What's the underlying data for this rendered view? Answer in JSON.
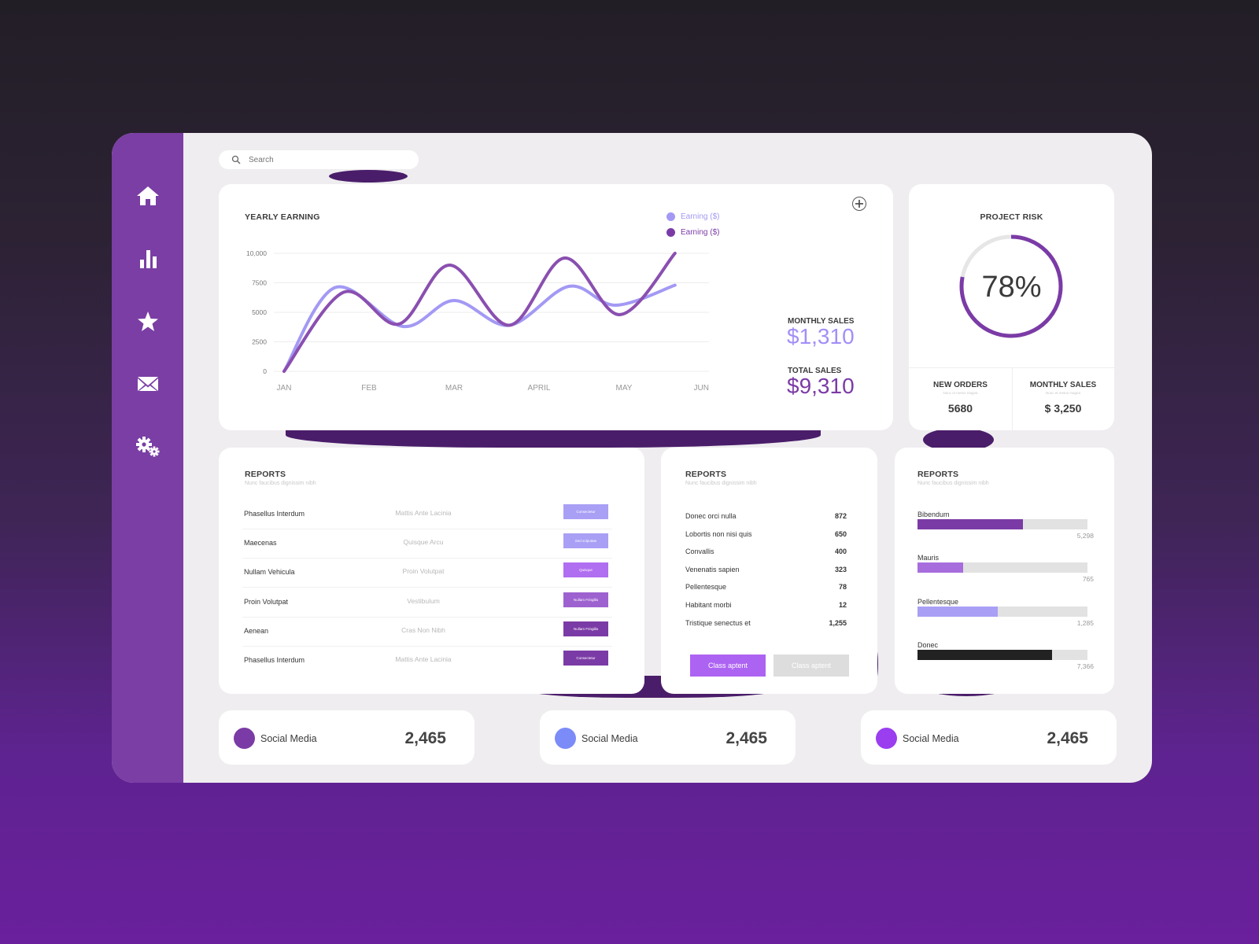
{
  "colors": {
    "brand": "#7a3ea4",
    "light_purple": "#a08cf8",
    "mid_purple": "#a86ddd",
    "dark_purple": "#7b3ba6",
    "grey_button": "#dddddd"
  },
  "sidebar": {
    "items": [
      {
        "icon": "home-icon"
      },
      {
        "icon": "bar-chart-icon"
      },
      {
        "icon": "star-icon"
      },
      {
        "icon": "mail-icon"
      },
      {
        "icon": "gears-icon"
      }
    ]
  },
  "search": {
    "placeholder": "Search"
  },
  "yearly": {
    "title": "YEARLY EARNING",
    "monthly_sales_label": "MONTHLY SALES",
    "monthly_sales_value": "$1,310",
    "total_sales_label": "TOTAL SALES",
    "total_sales_value": "$9,310"
  },
  "chart_data": {
    "type": "line",
    "title": "YEARLY EARNING",
    "x": [
      "JAN",
      "FEB",
      "MAR",
      "APRIL",
      "MAY",
      "JUN"
    ],
    "y_ticks": [
      "10,000",
      "7500",
      "5000",
      "2500",
      "0"
    ],
    "ylim": [
      0,
      10000
    ],
    "legend_position": "top-right",
    "grid": true,
    "series": [
      {
        "name": "Earning ($)",
        "color": "#a399f4",
        "points": [
          [
            0,
            0
          ],
          [
            0.6,
            7100
          ],
          [
            1.4,
            3800
          ],
          [
            2.0,
            6000
          ],
          [
            2.65,
            3900
          ],
          [
            3.35,
            7200
          ],
          [
            3.9,
            5600
          ],
          [
            4.6,
            7300
          ]
        ]
      },
      {
        "name": "Earning ($)",
        "color": "#8a4fb0",
        "points": [
          [
            0,
            0
          ],
          [
            0.7,
            6700
          ],
          [
            1.35,
            4000
          ],
          [
            1.95,
            9000
          ],
          [
            2.65,
            3900
          ],
          [
            3.3,
            9600
          ],
          [
            3.95,
            4800
          ],
          [
            4.6,
            10000
          ]
        ]
      }
    ]
  },
  "risk": {
    "title": "PROJECT RISK",
    "percent": 78,
    "percent_label": "78%",
    "orders_label": "NEW ORDERS",
    "orders_sub": "Nunc et metus magna",
    "orders_value": "5680",
    "msales_label": "MONTHLY SALES",
    "msales_sub": "Nunc et metus magna",
    "msales_value": "$ 3,250"
  },
  "reports1": {
    "title": "REPORTS",
    "subtitle": "Nunc faucibus dignissim nibh",
    "rows": [
      {
        "name": "Phasellus Interdum",
        "detail": "Mattis Ante Lacinia",
        "tag": "Consectetur",
        "color": "#a99ff5"
      },
      {
        "name": "Maecenas",
        "detail": "Quisque Arcu",
        "tag": "Sed vulputate",
        "color": "#a99ff5"
      },
      {
        "name": "Nullam Vehicula",
        "detail": "Proin Volutpat",
        "tag": "Quisque",
        "color": "#b06ef0"
      },
      {
        "name": "Proin Volutpat",
        "detail": "Vestibulum",
        "tag": "Nullam Fringilla",
        "color": "#9d62cf"
      },
      {
        "name": "Aenean",
        "detail": "Cras Non Nibh",
        "tag": "Nullam Fringilla",
        "color": "#7b3ba6"
      },
      {
        "name": "Phasellus Interdum",
        "detail": "Mattis Ante Lacinia",
        "tag": "Consectetur",
        "color": "#7b3ba6"
      }
    ]
  },
  "reports2": {
    "title": "REPORTS",
    "subtitle": "Nunc faucibus dignissim nibh",
    "rows": [
      {
        "name": "Donec orci nulla",
        "value": "872"
      },
      {
        "name": "Lobortis non nisi quis",
        "value": "650"
      },
      {
        "name": "Convallis",
        "value": "400"
      },
      {
        "name": "Venenatis sapien",
        "value": "323"
      },
      {
        "name": "Pellentesque",
        "value": "78"
      },
      {
        "name": "Habitant morbi",
        "value": "12"
      },
      {
        "name": "Tristique senectus et",
        "value": "1,255"
      }
    ],
    "button_primary": "Class aptent",
    "button_secondary": "Class aptent"
  },
  "reports3": {
    "title": "REPORTS",
    "subtitle": "Nunc faucibus dignissim nibh",
    "bars": [
      {
        "label": "Bibendum",
        "value": "5,298",
        "fraction": 0.62,
        "color": "#7b3ba6"
      },
      {
        "label": "Mauris",
        "value": "765",
        "fraction": 0.27,
        "color": "#a86ddd"
      },
      {
        "label": "Pellentesque",
        "value": "1,285",
        "fraction": 0.47,
        "color": "#a99ff5"
      },
      {
        "label": "Donec",
        "value": "7,366",
        "fraction": 0.79,
        "color": "#222222"
      }
    ]
  },
  "social": [
    {
      "label": "Social Media",
      "value": "2,465",
      "color": "#7b3ba6"
    },
    {
      "label": "Social Media",
      "value": "2,465",
      "color": "#7b8cf8"
    },
    {
      "label": "Social Media",
      "value": "2,465",
      "color": "#9a3ef0"
    }
  ]
}
